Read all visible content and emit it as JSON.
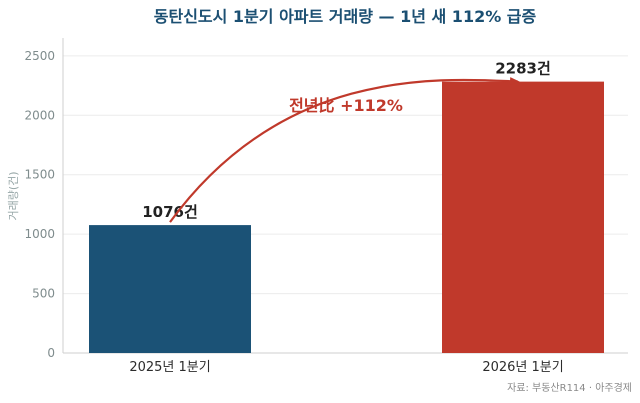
{
  "chart_data": {
    "type": "bar",
    "title": "동탄신도시 1분기 아파트 거래량 — 1년 새 112% 급증",
    "ylabel": "거래량(건)",
    "xlabel": "",
    "categories": [
      "2025년 1분기",
      "2026년 1분기"
    ],
    "series": [
      {
        "values": [
          1076,
          2283
        ]
      }
    ],
    "data_labels": [
      "1076건",
      "2283건"
    ],
    "bar_colors": [
      "#1b5276",
      "#c0392b"
    ],
    "ylim": [
      0,
      2650
    ],
    "yticks": [
      0,
      500,
      1000,
      1500,
      2000,
      2500
    ],
    "grid": true,
    "annotation": {
      "text": "전년比 +112%",
      "color": "#c0392b",
      "arrow": "from first bar to second bar"
    }
  },
  "source": "자료: 부동산R114 · 아주경제"
}
